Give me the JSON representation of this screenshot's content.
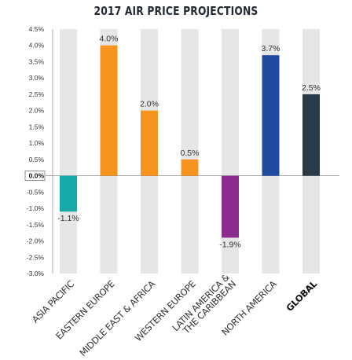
{
  "chart_data": {
    "type": "bar",
    "title": "2017 AIR PRICE PROJECTIONS",
    "xlabel": "",
    "ylabel": "",
    "ylim": [
      -3.0,
      4.5
    ],
    "y_ticks": [
      "4.5%",
      "4.0%",
      "3.5%",
      "3.0%",
      "2.5%",
      "2.0%",
      "1.5%",
      "1.0%",
      "0.5%",
      "0.0%",
      "-0.5%",
      "-1.0%",
      "-1.5%",
      "-2.0%",
      "-2.5%",
      "-3.0%"
    ],
    "y_tick_values": [
      4.5,
      4.0,
      3.5,
      3.0,
      2.5,
      2.0,
      1.5,
      1.0,
      0.5,
      0.0,
      -0.5,
      -1.0,
      -1.5,
      -2.0,
      -2.5,
      -3.0
    ],
    "categories": [
      [
        "ASIA PACIFIC"
      ],
      [
        "EASTERN EUROPE"
      ],
      [
        "MIDDLE EAST & AFRICA"
      ],
      [
        "WESTERN EUROPE"
      ],
      [
        "LATIN AMERICA &",
        "THE CARIBBEAN"
      ],
      [
        "NORTH AMERICA"
      ],
      [
        "GLOBAL"
      ]
    ],
    "values": [
      -1.1,
      4.0,
      2.0,
      0.5,
      -1.9,
      3.7,
      2.5
    ],
    "data_labels": [
      "-1.1%",
      "4.0%",
      "2.0%",
      "0.5%",
      "-1.9%",
      "3.7%",
      "2.5%"
    ],
    "bar_colors": [
      "#16aaa9",
      "#f7941d",
      "#f7941d",
      "#f7941d",
      "#8c2c8f",
      "#1f4aa0",
      "#2b3a47"
    ],
    "background_column_color": "#e6e6e6",
    "bold_categories": [
      "GLOBAL"
    ],
    "grid": false,
    "legend": "none"
  }
}
